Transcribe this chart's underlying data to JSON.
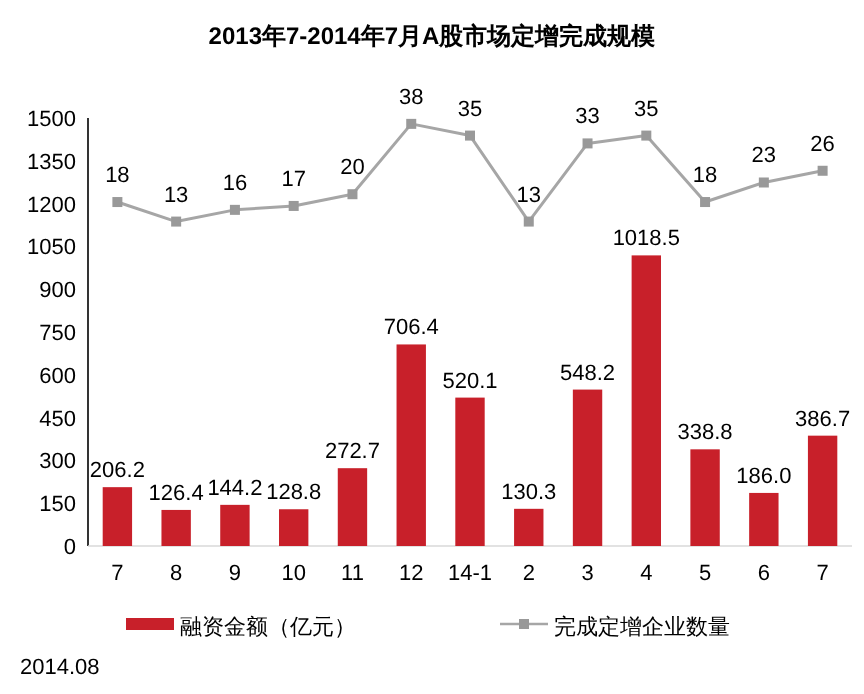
{
  "chart_data": {
    "type": "bar",
    "title": "2013年7-2014年7月A股市场定增完成规模",
    "categories": [
      "7",
      "8",
      "9",
      "10",
      "11",
      "12",
      "14-1",
      "2",
      "3",
      "4",
      "5",
      "6",
      "7"
    ],
    "series": [
      {
        "name": "融资金额（亿元）",
        "color": "#c8202a",
        "values": [
          206.2,
          126.4,
          144.2,
          128.8,
          272.7,
          706.4,
          520.1,
          130.3,
          548.2,
          1018.5,
          338.8,
          186.0,
          386.7
        ],
        "value_labels": [
          "206.2",
          "126.4",
          "144.2",
          "128.8",
          "272.7",
          "706.4",
          "520.1",
          "130.3",
          "548.2",
          "1018.5",
          "338.8",
          "186.0",
          "386.7"
        ]
      },
      {
        "name": "完成定增企业数量",
        "type": "line",
        "axis": "y2",
        "color": "#a6a6a6",
        "marker": "square",
        "values": [
          18,
          13,
          16,
          17,
          20,
          38,
          35,
          13,
          33,
          35,
          18,
          23,
          26
        ],
        "value_labels": [
          "18",
          "13",
          "16",
          "17",
          "20",
          "38",
          "35",
          "13",
          "33",
          "35",
          "18",
          "23",
          "26"
        ]
      }
    ],
    "ylim": [
      0,
      1500
    ],
    "yticks": [
      0,
      150,
      300,
      450,
      600,
      750,
      900,
      1050,
      1200,
      1350,
      1500
    ],
    "y2lim": [
      -70,
      39.5
    ],
    "tick_labels": "xy",
    "grid": false,
    "legend": "bottom",
    "annotations": [
      "2014.08"
    ]
  }
}
